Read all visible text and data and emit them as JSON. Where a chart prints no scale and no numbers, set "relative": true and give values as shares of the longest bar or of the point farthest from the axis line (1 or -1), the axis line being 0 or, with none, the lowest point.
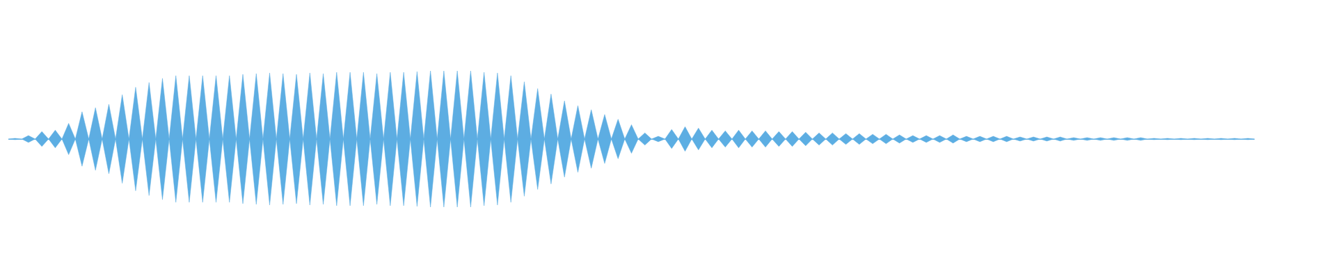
{
  "chart_data": {
    "type": "area",
    "relative": true,
    "categories": [
      null,
      null,
      null,
      null,
      null,
      null,
      null,
      null,
      null,
      null,
      null,
      null,
      null,
      null,
      null,
      null,
      null,
      null,
      null,
      null,
      null,
      null,
      null,
      null,
      null,
      null,
      null,
      null,
      null,
      null,
      null,
      null,
      null,
      null,
      null,
      null,
      null,
      null,
      null,
      null,
      null,
      null,
      null,
      null,
      null,
      null,
      null,
      null,
      null,
      null,
      null,
      null,
      null,
      null,
      null,
      null,
      null,
      null,
      null,
      null,
      null,
      null,
      null,
      null,
      null,
      null,
      null,
      null,
      null,
      null,
      null,
      null,
      null,
      null,
      null,
      null,
      null,
      null,
      null,
      null,
      null,
      null,
      null,
      null,
      null,
      null,
      null,
      null,
      null,
      null,
      null,
      null,
      null,
      null,
      null,
      null,
      null,
      null,
      null,
      null,
      null,
      null,
      null,
      null,
      null,
      null,
      null,
      null,
      null,
      null,
      null,
      null,
      null,
      null,
      null,
      null,
      null,
      null,
      null,
      null,
      null,
      null,
      null,
      null,
      null,
      null,
      null,
      null,
      null,
      null,
      null,
      null,
      null,
      null,
      null,
      null,
      null,
      null,
      null,
      null,
      null,
      null,
      null,
      null,
      null,
      null,
      null,
      null,
      null,
      null,
      null,
      null,
      null,
      null,
      null,
      null,
      null,
      null,
      null,
      null,
      null,
      null,
      null,
      null,
      null,
      null,
      null,
      null,
      null,
      null,
      null,
      null,
      null,
      null,
      null,
      null,
      null,
      null,
      null,
      null,
      null,
      null,
      null,
      null,
      null,
      null,
      null
    ],
    "series": [
      {
        "color": "#5dade2",
        "values": [
          0,
          0.01,
          0,
          0.05,
          0,
          0.11,
          0,
          0.13,
          0,
          0.23,
          0,
          0.4,
          0,
          0.46,
          0,
          0.51,
          0,
          0.65,
          0,
          0.76,
          0,
          0.83,
          0,
          0.89,
          0,
          0.93,
          0,
          0.93,
          0,
          0.93,
          0,
          0.93,
          0,
          0.93,
          0,
          0.95,
          0,
          0.96,
          0,
          0.97,
          0,
          0.96,
          0,
          0.95,
          0,
          0.97,
          0,
          0.96,
          0,
          0.98,
          0,
          0.98,
          0,
          0.98,
          0,
          0.96,
          0,
          0.98,
          0,
          0.98,
          0,
          0.99,
          0,
          1,
          0,
          1,
          0,
          1,
          0,
          1,
          0,
          0.98,
          0,
          0.97,
          0,
          0.93,
          0,
          0.84,
          0,
          0.74,
          0,
          0.66,
          0,
          0.56,
          0,
          0.49,
          0,
          0.43,
          0,
          0.36,
          0,
          0.29,
          0,
          0.21,
          0,
          0.09,
          0,
          0.04,
          0,
          0.14,
          0,
          0.18,
          0,
          0.16,
          0,
          0.13,
          0,
          0.12,
          0,
          0.13,
          0,
          0.12,
          0,
          0.12,
          0,
          0.11,
          0,
          0.11,
          0,
          0.1,
          0,
          0.09,
          0,
          0.09,
          0,
          0.08,
          0,
          0.08,
          0,
          0.07,
          0,
          0.07,
          0,
          0.06,
          0,
          0.05,
          0,
          0.05,
          0,
          0.05,
          0,
          0.06,
          0,
          0.04,
          0,
          0.04,
          0,
          0.04,
          0,
          0.04,
          0,
          0.03,
          0,
          0.03,
          0,
          0.03,
          0,
          0.03,
          0,
          0.02,
          0,
          0.02,
          0,
          0.02,
          0,
          0.02,
          0,
          0.02,
          0,
          0.02,
          0,
          0.01,
          0,
          0.01,
          0,
          0.01,
          0,
          0.01,
          0,
          0.01,
          0,
          0.01,
          0,
          0.01,
          0,
          0.01,
          0
        ]
      },
      {
        "color": "#5caee3",
        "values": [
          0,
          -0.01,
          0,
          -0.05,
          0,
          -0.11,
          0,
          -0.13,
          0,
          -0.23,
          0,
          -0.4,
          0,
          -0.46,
          0,
          -0.51,
          0,
          -0.65,
          0,
          -0.76,
          0,
          -0.83,
          0,
          -0.89,
          0,
          -0.93,
          0,
          -0.93,
          0,
          -0.93,
          0,
          -0.93,
          0,
          -0.93,
          0,
          -0.95,
          0,
          -0.96,
          0,
          -0.97,
          0,
          -0.96,
          0,
          -0.95,
          0,
          -0.97,
          0,
          -0.96,
          0,
          -0.98,
          0,
          -0.98,
          0,
          -0.98,
          0,
          -0.96,
          0,
          -0.98,
          0,
          -0.98,
          0,
          -0.99,
          0,
          -1,
          0,
          -1,
          0,
          -1,
          0,
          -1,
          0,
          -0.98,
          0,
          -0.97,
          0,
          -0.93,
          0,
          -0.84,
          0,
          -0.74,
          0,
          -0.66,
          0,
          -0.56,
          0,
          -0.49,
          0,
          -0.43,
          0,
          -0.36,
          0,
          -0.29,
          0,
          -0.21,
          0,
          -0.09,
          0,
          -0.04,
          0,
          -0.14,
          0,
          -0.18,
          0,
          -0.16,
          0,
          -0.13,
          0,
          -0.12,
          0,
          -0.13,
          0,
          -0.12,
          0,
          -0.12,
          0,
          -0.11,
          0,
          -0.11,
          0,
          -0.1,
          0,
          -0.09,
          0,
          -0.09,
          0,
          -0.08,
          0,
          -0.08,
          0,
          -0.07,
          0,
          -0.07,
          0,
          -0.06,
          0,
          -0.05,
          0,
          -0.05,
          0,
          -0.05,
          0,
          -0.06,
          0,
          -0.04,
          0,
          -0.04,
          0,
          -0.04,
          0,
          -0.04,
          0,
          -0.03,
          0,
          -0.03,
          0,
          -0.03,
          0,
          -0.03,
          0,
          -0.02,
          0,
          -0.02,
          0,
          -0.02,
          0,
          -0.02,
          0,
          -0.02,
          0,
          -0.02,
          0,
          -0.01,
          0,
          -0.01,
          0,
          -0.01,
          0,
          -0.01,
          0,
          -0.01,
          0,
          -0.01,
          0,
          -0.01,
          0,
          -0.01,
          0
        ]
      }
    ]
  }
}
